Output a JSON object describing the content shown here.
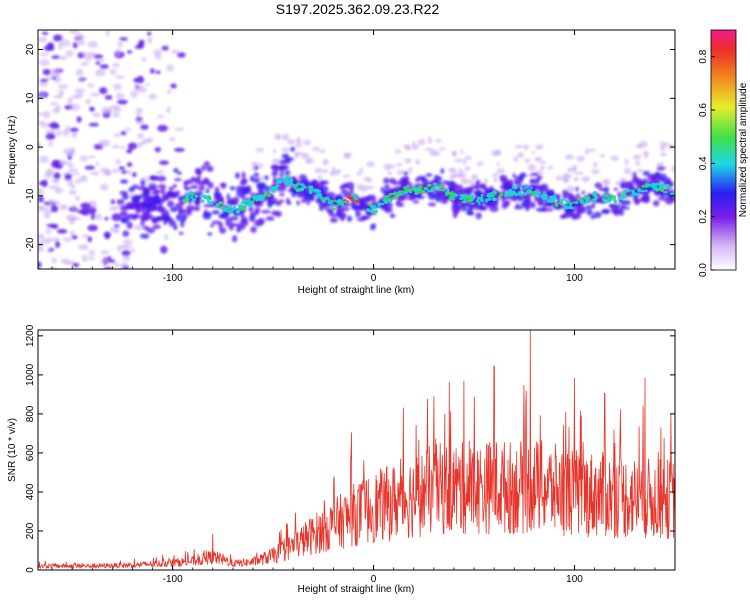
{
  "title": "S197.2025.362.09.23.R22",
  "colors": {
    "snr_line": "#e8352b",
    "spectrogram_purple": "#5a14e8",
    "spectrogram_light": "#c9a8f2",
    "ridge_cyan": "#19d7d2",
    "ridge_green": "#3ed84a",
    "ridge_red": "#ee2b2b"
  },
  "chart_data": [
    {
      "type": "heatmap",
      "name": "spectrogram",
      "xlabel": "Height of straight line (km)",
      "ylabel": "Frequency (Hz)",
      "xlim": [
        -167,
        150
      ],
      "ylim": [
        -25,
        24
      ],
      "xticks": [
        -100,
        0,
        100
      ],
      "yticks": [
        -20,
        -10,
        0,
        10,
        20
      ],
      "xtick_labels": [
        "-100",
        "0",
        "100"
      ],
      "ytick_labels": [
        "-20",
        "-10",
        "0",
        "10",
        "20"
      ],
      "ridge": {
        "x": [
          -100,
          -90,
          -80,
          -70,
          -60,
          -50,
          -45,
          -40,
          -30,
          -20,
          -15,
          -10,
          -5,
          0,
          5,
          10,
          15,
          20,
          30,
          40,
          50,
          60,
          70,
          80,
          90,
          100,
          110,
          120,
          130,
          140,
          150
        ],
        "y": [
          -12,
          -10,
          -11,
          -13,
          -11,
          -9,
          -6,
          -8,
          -9,
          -12,
          -11,
          -10,
          -12,
          -13,
          -11,
          -10,
          -9,
          -9,
          -8,
          -10,
          -11,
          -10,
          -9,
          -9,
          -11,
          -12,
          -10,
          -11,
          -9,
          -8,
          -9
        ]
      },
      "colorbar": {
        "label": "Normalized spectral amplitude",
        "range": [
          0,
          0.9
        ],
        "ticks": [
          0.0,
          0.2,
          0.4,
          0.6,
          0.8
        ],
        "tick_labels": [
          "0.0",
          "0.2",
          "0.4",
          "0.6",
          "0.8"
        ]
      }
    },
    {
      "type": "line",
      "name": "snr",
      "xlabel": "Height of straight line (km)",
      "ylabel": "SNR (10 * v/v)",
      "xlim": [
        -167,
        150
      ],
      "ylim": [
        0,
        1230
      ],
      "xticks": [
        -100,
        0,
        100
      ],
      "yticks": [
        0,
        200,
        400,
        600,
        800,
        1000,
        1200
      ],
      "xtick_labels": [
        "-100",
        "0",
        "100"
      ],
      "ytick_labels": [
        "0",
        "200",
        "400",
        "600",
        "800",
        "1000",
        "1200"
      ],
      "envelope_x": [
        -167,
        -140,
        -120,
        -100,
        -90,
        -80,
        -75,
        -70,
        -60,
        -50,
        -40,
        -30,
        -20,
        -10,
        0,
        10,
        20,
        30,
        40,
        50,
        60,
        70,
        80,
        90,
        100,
        110,
        120,
        130,
        140,
        150
      ],
      "envelope_y": [
        25,
        25,
        30,
        45,
        55,
        80,
        65,
        40,
        50,
        90,
        150,
        220,
        280,
        340,
        390,
        420,
        460,
        500,
        510,
        500,
        520,
        510,
        520,
        500,
        480,
        470,
        460,
        450,
        440,
        440
      ],
      "spikes": [
        {
          "x": -80,
          "y": 185
        },
        {
          "x": -11,
          "y": 705
        },
        {
          "x": 30,
          "y": 890
        },
        {
          "x": 45,
          "y": 970
        },
        {
          "x": 60,
          "y": 1045
        },
        {
          "x": 78,
          "y": 1230
        },
        {
          "x": 100,
          "y": 985
        },
        {
          "x": 115,
          "y": 905
        },
        {
          "x": 135,
          "y": 985
        },
        {
          "x": 148,
          "y": 800
        }
      ]
    }
  ]
}
